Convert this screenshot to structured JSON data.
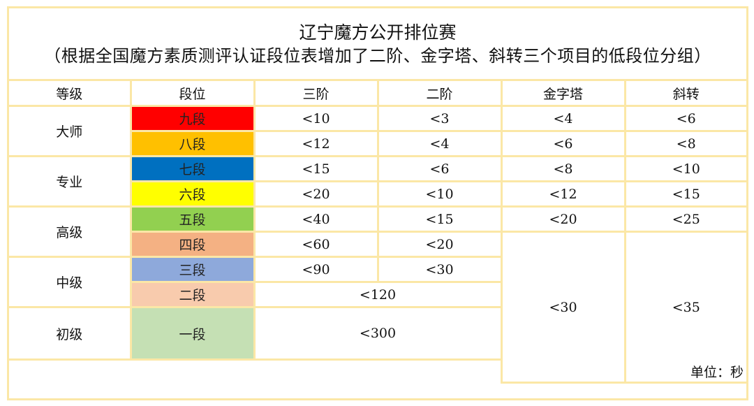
{
  "title": "辽宁魔方公开排位赛",
  "subtitle": "（根据全国魔方素质测评认证段位表增加了二阶、金字塔、斜转三个项目的低段位分组）",
  "headers": [
    "等级",
    "段位",
    "三阶",
    "二阶",
    "金字塔",
    "斜转"
  ],
  "levels": [
    "大师",
    "专业",
    "高级",
    "中级",
    "初级"
  ],
  "rows": [
    {
      "dan": "九段",
      "color": "#ff0000",
      "s3": "<10",
      "s2": "<3",
      "pyr": "<4",
      "skewb": "<6"
    },
    {
      "dan": "八段",
      "color": "#ffc000",
      "s3": "<12",
      "s2": "<4",
      "pyr": "<6",
      "skewb": "<8"
    },
    {
      "dan": "七段",
      "color": "#0070c0",
      "s3": "<15",
      "s2": "<6",
      "pyr": "<8",
      "skewb": "<10"
    },
    {
      "dan": "六段",
      "color": "#ffff00",
      "s3": "<20",
      "s2": "<10",
      "pyr": "<12",
      "skewb": "<15"
    },
    {
      "dan": "五段",
      "color": "#92d050",
      "s3": "<40",
      "s2": "<15",
      "pyr": "<20",
      "skewb": "<25"
    },
    {
      "dan": "四段",
      "color": "#f4b183",
      "s3": "<60",
      "s2": "<20"
    },
    {
      "dan": "三段",
      "color": "#8ea9db",
      "s3": "<90",
      "s2": "<30"
    },
    {
      "dan": "二段",
      "color": "#f8cbad",
      "s3s2": "<120"
    },
    {
      "dan": "一段",
      "color": "#c5e0b4",
      "s3s2": "<300"
    }
  ],
  "pyr_low": "<30",
  "skewb_low": "<35",
  "unit": "单位：秒"
}
